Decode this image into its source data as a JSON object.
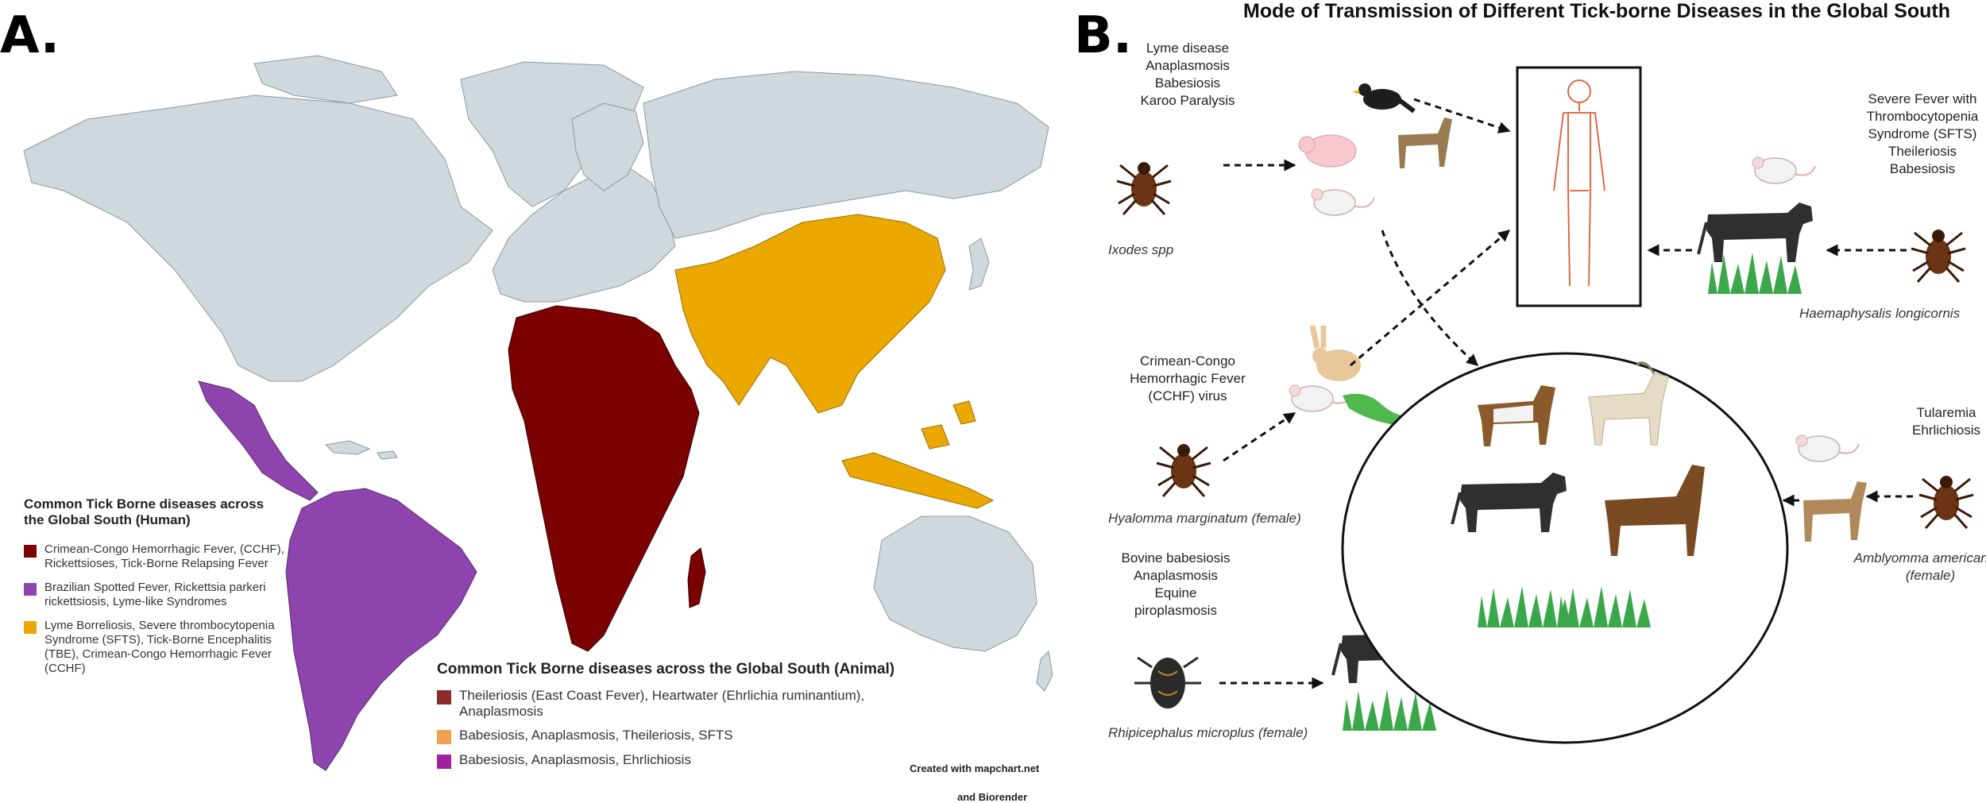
{
  "panel_a": {
    "label": "A.",
    "human_legend": {
      "title": "Common Tick Borne diseases across the Global South (Human)",
      "items": [
        {
          "color": "#7b0000",
          "text": "Crimean-Congo Hemorrhagic Fever, (CCHF), Rickettsioses, Tick-Borne Relapsing Fever"
        },
        {
          "color": "#8e44ad",
          "text": "Brazilian Spotted Fever, Rickettsia parkeri rickettsiosis, Lyme-like Syndromes"
        },
        {
          "color": "#eaa800",
          "text": "Lyme Borreliosis, Severe thrombocytopenia Syndrome (SFTS), Tick-Borne Encephalitis (TBE), Crimean-Congo Hemorrhagic Fever (CCHF)"
        }
      ]
    },
    "animal_legend": {
      "title": "Common Tick Borne diseases across the Global South (Animal)",
      "items": [
        {
          "color": "#8b2a2a",
          "text": "Theileriosis (East Coast Fever), Heartwater (Ehrlichia ruminantium), Anaplasmosis"
        },
        {
          "color": "#f0a050",
          "text": "Babesiosis, Anaplasmosis, Theileriosis, SFTS"
        },
        {
          "color": "#a020a0",
          "text": "Babesiosis, Anaplasmosis, Ehrlichiosis"
        }
      ]
    },
    "credit_line1": "Created with mapchart.net",
    "credit_line2": "and Biorender"
  },
  "panel_b": {
    "label": "B.",
    "title": "Mode of Transmission of Different Tick-borne Diseases in the Global South",
    "ixodes": {
      "diseases": [
        "Lyme disease",
        "Anaplasmosis",
        "Babesiosis",
        "Karoo Paralysis"
      ],
      "species": "Ixodes spp"
    },
    "hyalomma": {
      "diseases": [
        "Crimean-Congo",
        "Hemorrhagic Fever",
        "(CCHF) virus"
      ],
      "species": "Hyalomma marginatum (female)"
    },
    "rhipicephalus": {
      "diseases": [
        "Bovine babesiosis",
        "Anaplasmosis",
        "Equine",
        "piroplasmosis"
      ],
      "species": "Rhipicephalus microplus (female)"
    },
    "haemaphysalis": {
      "diseases": [
        "Severe Fever with",
        "Thrombocytopenia",
        "Syndrome (SFTS)",
        "Theileriosis",
        "Babesiosis"
      ],
      "species": "Haemaphysalis longicornis"
    },
    "amblyomma": {
      "diseases": [
        "Tularemia",
        "Ehrlichiosis"
      ],
      "species": "Amblyomma americanum",
      "species2": "(female)"
    }
  }
}
